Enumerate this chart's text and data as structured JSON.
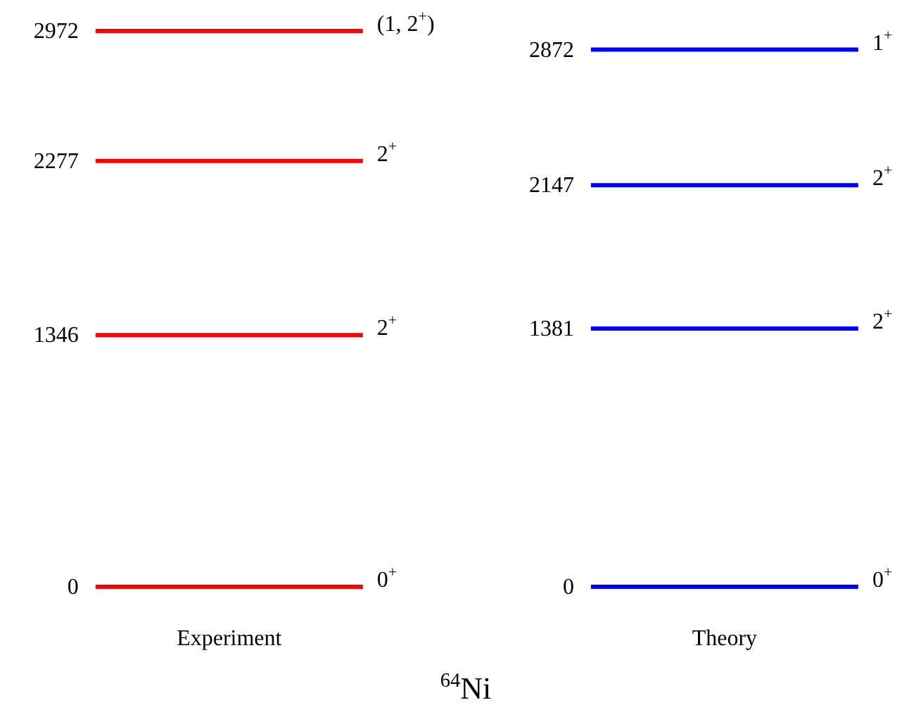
{
  "chart_data": {
    "type": "other",
    "title": "$^{64}$Ni",
    "categories": [
      "Experiment",
      "Theory"
    ],
    "data_labels": true,
    "series": [
      {
        "colors": [
          "#ff0000",
          "#0000ff"
        ],
        "values": [
          0,
          0
        ]
      },
      {
        "colors": [
          "#ff0000",
          "#0000ff"
        ],
        "values": [
          1346,
          1381
        ]
      },
      {
        "colors": [
          "#ff0000",
          "#0000ff"
        ],
        "values": [
          2277,
          2147
        ]
      },
      {
        "colors": [
          "#ff0000",
          "#0000ff"
        ],
        "values": [
          2972,
          2872
        ]
      }
    ],
    "annotations": [
      {
        "text": "0$^{+}$",
        "x": "Experiment"
      },
      {
        "text": "2$^{+}$",
        "x": "Experiment"
      },
      {
        "text": "2$^{+}$",
        "x": "Experiment"
      },
      {
        "text": "(1, 2$^{+}$)",
        "x": "Experiment"
      },
      {
        "text": "0$^{+}$",
        "x": "Theory"
      },
      {
        "text": "2$^{+}$",
        "x": "Theory"
      },
      {
        "text": "2$^{+}$",
        "x": "Theory"
      },
      {
        "text": "1$^{+}$",
        "x": "Theory"
      }
    ]
  }
}
